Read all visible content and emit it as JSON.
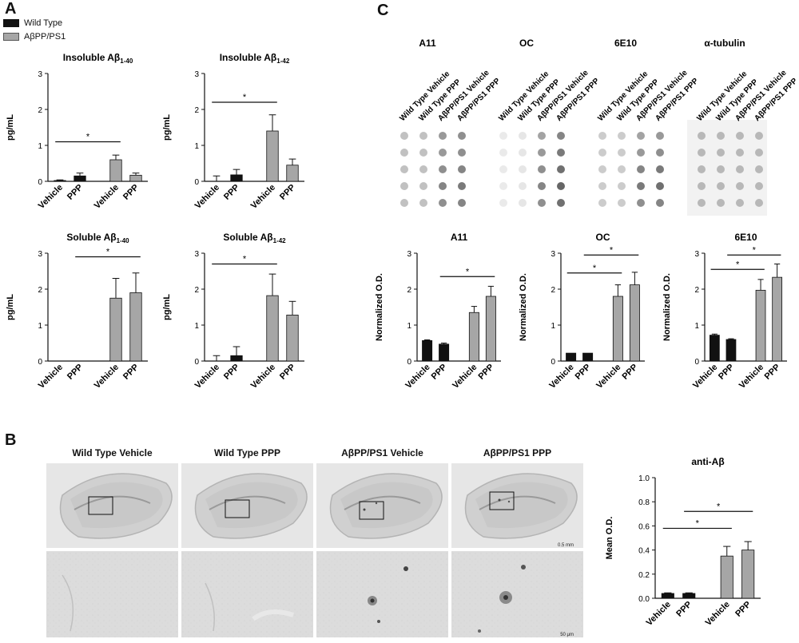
{
  "panels": {
    "a": "A",
    "b": "B",
    "c": "C"
  },
  "legend": [
    {
      "label": "Wild Type",
      "color": "#111111"
    },
    {
      "label": "AβPP/PS1",
      "color": "#a6a6a6"
    }
  ],
  "colors": {
    "wt": "#111111",
    "tg": "#a6a6a6"
  },
  "group_labels": [
    "Vehicle",
    "PPP",
    "Vehicle",
    "PPP"
  ],
  "dot_blot": {
    "antibodies": [
      "A11",
      "OC",
      "6E10",
      "α-tubulin"
    ],
    "lanes": [
      "Wild Type Vehicle",
      "Wild Type PPP",
      "AβPP/PS1 Vehicle",
      "AβPP/PS1 PPP"
    ],
    "rows": 5
  },
  "histology": {
    "titles": [
      "Wild Type Vehicle",
      "Wild Type PPP",
      "AβPP/PS1 Vehicle",
      "AβPP/PS1 PPP"
    ],
    "scale_top": "0.5 mm",
    "scale_bottom": "50 μm"
  },
  "chart_data": [
    {
      "id": "insoluble40",
      "type": "bar",
      "title_main": "Insoluble Aβ",
      "title_sub": "1-40",
      "ylabel": "pg/mL",
      "ylim": [
        0,
        3
      ],
      "yticks": [
        0,
        1,
        2,
        3
      ],
      "categories": [
        "Vehicle",
        "PPP",
        "Vehicle",
        "PPP"
      ],
      "values": [
        0.02,
        0.15,
        0.6,
        0.17
      ],
      "errors": [
        0.02,
        0.08,
        0.13,
        0.06
      ],
      "sig": [
        {
          "from": 0,
          "to": 2,
          "level": 1.1,
          "label": "*"
        }
      ]
    },
    {
      "id": "insoluble42",
      "type": "bar",
      "title_main": "Insoluble Aβ",
      "title_sub": "1-42",
      "ylabel": "pg/mL",
      "ylim": [
        0,
        3
      ],
      "yticks": [
        0,
        1,
        2,
        3
      ],
      "categories": [
        "Vehicle",
        "PPP",
        "Vehicle",
        "PPP"
      ],
      "values": [
        0.0,
        0.18,
        1.4,
        0.45
      ],
      "errors": [
        0.15,
        0.15,
        0.45,
        0.17
      ],
      "sig": [
        {
          "from": 0,
          "to": 2,
          "level": 2.2,
          "label": "*"
        }
      ]
    },
    {
      "id": "soluble40",
      "type": "bar",
      "title_main": "Soluble Aβ",
      "title_sub": "1-40",
      "ylabel": "pg/mL",
      "ylim": [
        0,
        3
      ],
      "yticks": [
        0,
        1,
        2,
        3
      ],
      "categories": [
        "Vehicle",
        "PPP",
        "Vehicle",
        "PPP"
      ],
      "values": [
        0.0,
        0.0,
        1.75,
        1.9
      ],
      "errors": [
        0.0,
        0.0,
        0.55,
        0.55
      ],
      "sig": [
        {
          "from": 1,
          "to": 3,
          "level": 2.9,
          "label": "*"
        }
      ]
    },
    {
      "id": "soluble42",
      "type": "bar",
      "title_main": "Soluble Aβ",
      "title_sub": "1-42",
      "ylabel": "pg/mL",
      "ylim": [
        0,
        3
      ],
      "yticks": [
        0,
        1,
        2,
        3
      ],
      "categories": [
        "Vehicle",
        "PPP",
        "Vehicle",
        "PPP"
      ],
      "values": [
        0.0,
        0.15,
        1.82,
        1.28
      ],
      "errors": [
        0.15,
        0.25,
        0.6,
        0.38
      ],
      "sig": [
        {
          "from": 0,
          "to": 2,
          "level": 2.7,
          "label": "*"
        }
      ]
    },
    {
      "id": "a11",
      "type": "bar",
      "title_main": "A11",
      "title_sub": "",
      "ylabel": "Normalized O.D.",
      "ylim": [
        0,
        3
      ],
      "yticks": [
        0,
        1,
        2,
        3
      ],
      "categories": [
        "Vehicle",
        "PPP",
        "Vehicle",
        "PPP"
      ],
      "values": [
        0.57,
        0.47,
        1.35,
        1.8
      ],
      "errors": [
        0.02,
        0.03,
        0.17,
        0.28
      ],
      "sig": [
        {
          "from": 1,
          "to": 3,
          "level": 2.35,
          "label": "*"
        }
      ]
    },
    {
      "id": "oc",
      "type": "bar",
      "title_main": "OC",
      "title_sub": "",
      "ylabel": "Normalized O.D.",
      "ylim": [
        0,
        3
      ],
      "yticks": [
        0,
        1,
        2,
        3
      ],
      "categories": [
        "Vehicle",
        "PPP",
        "Vehicle",
        "PPP"
      ],
      "values": [
        0.22,
        0.22,
        1.8,
        2.12
      ],
      "errors": [
        0.0,
        0.0,
        0.32,
        0.35
      ],
      "sig": [
        {
          "from": 0,
          "to": 2,
          "level": 2.45,
          "label": "*"
        },
        {
          "from": 1,
          "to": 3,
          "level": 2.95,
          "label": "*"
        }
      ]
    },
    {
      "id": "6e10",
      "type": "bar",
      "title_main": "6E10",
      "title_sub": "",
      "ylabel": "Normalized O.D.",
      "ylim": [
        0,
        3
      ],
      "yticks": [
        0,
        1,
        2,
        3
      ],
      "categories": [
        "Vehicle",
        "PPP",
        "Vehicle",
        "PPP"
      ],
      "values": [
        0.72,
        0.6,
        1.97,
        2.33
      ],
      "errors": [
        0.03,
        0.02,
        0.3,
        0.37
      ],
      "sig": [
        {
          "from": 0,
          "to": 2,
          "level": 2.55,
          "label": "*"
        },
        {
          "from": 1,
          "to": 3,
          "level": 2.95,
          "label": "*"
        }
      ]
    },
    {
      "id": "antiab",
      "type": "bar",
      "title_main": "anti-Aβ",
      "title_sub": "",
      "ylabel": "Mean O.D.",
      "ylim": [
        0,
        1.0
      ],
      "yticks": [
        0.0,
        0.2,
        0.4,
        0.6,
        0.8,
        1.0
      ],
      "categories": [
        "Vehicle",
        "PPP",
        "Vehicle",
        "PPP"
      ],
      "values": [
        0.04,
        0.04,
        0.35,
        0.4
      ],
      "errors": [
        0.005,
        0.005,
        0.08,
        0.07
      ],
      "sig": [
        {
          "from": 0,
          "to": 2,
          "level": 0.58,
          "label": "*"
        },
        {
          "from": 1,
          "to": 3,
          "level": 0.72,
          "label": "*"
        }
      ]
    }
  ]
}
